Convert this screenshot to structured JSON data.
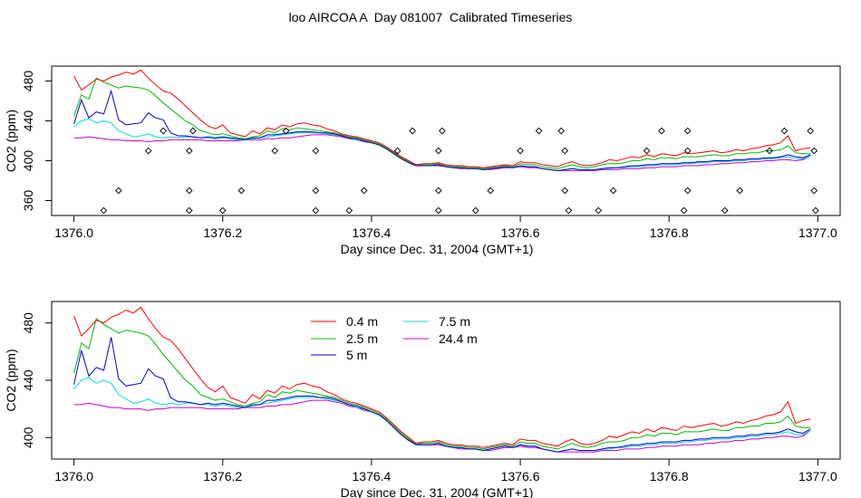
{
  "title": "loo AIRCOA A  Day 081007  Calibrated Timeseries",
  "chart_data": [
    {
      "type": "line",
      "title": "",
      "xlabel": "Day since Dec. 31, 2004 (GMT+1)",
      "ylabel": "CO2 (ppm)",
      "xlim": [
        1375.97,
        1377.03
      ],
      "ylim": [
        345,
        495
      ],
      "xticks": [
        1376.0,
        1376.2,
        1376.4,
        1376.6,
        1376.8,
        1377.0
      ],
      "xtick_labels": [
        "1376.0",
        "1376.2",
        "1376.4",
        "1376.6",
        "1376.8",
        "1377.0"
      ],
      "yticks": [
        360,
        400,
        440,
        480
      ],
      "ytick_labels": [
        "360",
        "400",
        "440",
        "480"
      ],
      "grid": false,
      "legend": "none",
      "x": [
        1376.0,
        1376.01,
        1376.02,
        1376.03,
        1376.04,
        1376.05,
        1376.06,
        1376.07,
        1376.08,
        1376.09,
        1376.1,
        1376.11,
        1376.12,
        1376.13,
        1376.14,
        1376.15,
        1376.16,
        1376.17,
        1376.18,
        1376.19,
        1376.2,
        1376.21,
        1376.22,
        1376.23,
        1376.24,
        1376.25,
        1376.26,
        1376.27,
        1376.28,
        1376.29,
        1376.3,
        1376.31,
        1376.32,
        1376.33,
        1376.34,
        1376.35,
        1376.36,
        1376.37,
        1376.38,
        1376.39,
        1376.4,
        1376.41,
        1376.42,
        1376.43,
        1376.44,
        1376.45,
        1376.46,
        1376.47,
        1376.48,
        1376.49,
        1376.5,
        1376.51,
        1376.52,
        1376.53,
        1376.54,
        1376.55,
        1376.56,
        1376.57,
        1376.58,
        1376.59,
        1376.6,
        1376.61,
        1376.62,
        1376.63,
        1376.64,
        1376.65,
        1376.66,
        1376.67,
        1376.68,
        1376.69,
        1376.7,
        1376.71,
        1376.72,
        1376.73,
        1376.74,
        1376.75,
        1376.76,
        1376.77,
        1376.78,
        1376.79,
        1376.8,
        1376.81,
        1376.82,
        1376.83,
        1376.84,
        1376.85,
        1376.86,
        1376.87,
        1376.88,
        1376.89,
        1376.9,
        1376.91,
        1376.92,
        1376.93,
        1376.94,
        1376.95,
        1376.96,
        1376.97,
        1376.98,
        1376.99
      ],
      "series": [
        {
          "name": "0.4 m",
          "color": "#ff0000",
          "values": [
            485,
            471,
            476,
            482,
            480,
            484,
            486,
            489,
            487,
            491,
            483,
            476,
            470,
            468,
            462,
            455,
            448,
            441,
            435,
            432,
            436,
            428,
            426,
            424,
            430,
            427,
            433,
            431,
            436,
            434,
            437,
            438,
            436,
            435,
            432,
            430,
            427,
            425,
            424,
            422,
            420,
            418,
            414,
            409,
            404,
            400,
            396,
            397,
            397,
            398,
            396,
            395,
            395,
            394,
            394,
            393,
            394,
            395,
            396,
            395,
            399,
            398,
            398,
            396,
            395,
            394,
            397,
            399,
            396,
            395,
            396,
            398,
            401,
            400,
            402,
            404,
            403,
            406,
            404,
            407,
            406,
            405,
            408,
            407,
            408,
            409,
            410,
            408,
            409,
            411,
            410,
            412,
            413,
            415,
            416,
            418,
            425,
            410,
            412,
            413
          ]
        },
        {
          "name": "2.5 m",
          "color": "#00bb00",
          "values": [
            445,
            466,
            462,
            483,
            479,
            476,
            473,
            475,
            474,
            473,
            471,
            465,
            458,
            452,
            446,
            440,
            436,
            430,
            428,
            426,
            427,
            425,
            423,
            422,
            424,
            425,
            430,
            428,
            432,
            431,
            433,
            432,
            431,
            430,
            429,
            428,
            426,
            424,
            423,
            421,
            419,
            417,
            413,
            408,
            403,
            399,
            396,
            396,
            396,
            397,
            395,
            394,
            394,
            393,
            393,
            392,
            393,
            394,
            395,
            394,
            397,
            396,
            396,
            394,
            393,
            392,
            394,
            396,
            394,
            393,
            394,
            396,
            397,
            397,
            398,
            400,
            400,
            402,
            401,
            403,
            403,
            402,
            404,
            404,
            404,
            405,
            406,
            405,
            405,
            407,
            407,
            408,
            408,
            410,
            410,
            411,
            415,
            408,
            407,
            407
          ]
        },
        {
          "name": "5 m",
          "color": "#0000cc",
          "values": [
            437,
            461,
            443,
            449,
            447,
            470,
            441,
            436,
            437,
            438,
            448,
            443,
            441,
            428,
            425,
            425,
            424,
            423,
            424,
            423,
            424,
            423,
            422,
            421,
            423,
            423,
            426,
            426,
            427,
            428,
            429,
            429,
            429,
            428,
            428,
            427,
            425,
            423,
            422,
            420,
            418,
            416,
            412,
            407,
            402,
            398,
            395,
            395,
            395,
            396,
            394,
            393,
            393,
            392,
            392,
            391,
            392,
            393,
            394,
            393,
            395,
            394,
            394,
            392,
            391,
            390,
            391,
            392,
            391,
            391,
            391,
            392,
            393,
            393,
            394,
            395,
            395,
            396,
            396,
            397,
            397,
            397,
            398,
            398,
            399,
            399,
            400,
            400,
            400,
            401,
            401,
            402,
            402,
            403,
            403,
            404,
            406,
            404,
            403,
            406
          ]
        },
        {
          "name": "7.5 m",
          "color": "#00dddd",
          "values": [
            434,
            440,
            442,
            438,
            440,
            438,
            430,
            427,
            424,
            425,
            427,
            424,
            423,
            424,
            423,
            424,
            424,
            423,
            423,
            422,
            423,
            422,
            421,
            421,
            422,
            423,
            424,
            425,
            426,
            427,
            428,
            428,
            428,
            428,
            427,
            426,
            425,
            423,
            421,
            420,
            418,
            416,
            412,
            407,
            402,
            398,
            395,
            395,
            395,
            396,
            394,
            393,
            393,
            392,
            392,
            391,
            392,
            393,
            394,
            393,
            395,
            394,
            394,
            392,
            391,
            390,
            391,
            392,
            391,
            391,
            391,
            392,
            392,
            393,
            393,
            394,
            394,
            395,
            395,
            396,
            396,
            396,
            397,
            397,
            398,
            398,
            399,
            399,
            399,
            400,
            400,
            401,
            401,
            402,
            402,
            403,
            404,
            402,
            402,
            405
          ]
        },
        {
          "name": "24.4 m",
          "color": "#cc00cc",
          "values": [
            423,
            423,
            424,
            423,
            422,
            421,
            421,
            420,
            420,
            420,
            419,
            420,
            420,
            421,
            421,
            421,
            421,
            421,
            420,
            420,
            420,
            420,
            420,
            421,
            421,
            421,
            422,
            422,
            423,
            423,
            424,
            425,
            426,
            426,
            426,
            425,
            424,
            422,
            421,
            419,
            418,
            416,
            412,
            407,
            402,
            398,
            396,
            395,
            395,
            395,
            394,
            393,
            392,
            392,
            392,
            391,
            391,
            392,
            393,
            393,
            394,
            393,
            393,
            392,
            391,
            390,
            390,
            390,
            390,
            390,
            390,
            391,
            391,
            391,
            392,
            392,
            392,
            393,
            393,
            394,
            394,
            394,
            395,
            395,
            395,
            396,
            396,
            397,
            397,
            398,
            398,
            399,
            399,
            400,
            400,
            401,
            401,
            400,
            401,
            405
          ]
        }
      ],
      "markers": {
        "shape": "open-diamond",
        "points": [
          [
            1376.04,
            350
          ],
          [
            1376.06,
            370
          ],
          [
            1376.1,
            410
          ],
          [
            1376.12,
            430
          ],
          [
            1376.155,
            350
          ],
          [
            1376.155,
            370
          ],
          [
            1376.155,
            410
          ],
          [
            1376.16,
            430
          ],
          [
            1376.2,
            350
          ],
          [
            1376.225,
            370
          ],
          [
            1376.27,
            410
          ],
          [
            1376.285,
            430
          ],
          [
            1376.325,
            350
          ],
          [
            1376.325,
            370
          ],
          [
            1376.325,
            410
          ],
          [
            1376.37,
            350
          ],
          [
            1376.39,
            370
          ],
          [
            1376.435,
            410
          ],
          [
            1376.455,
            430
          ],
          [
            1376.49,
            350
          ],
          [
            1376.49,
            370
          ],
          [
            1376.49,
            410
          ],
          [
            1376.495,
            430
          ],
          [
            1376.54,
            350
          ],
          [
            1376.56,
            370
          ],
          [
            1376.6,
            410
          ],
          [
            1376.625,
            430
          ],
          [
            1376.655,
            430
          ],
          [
            1376.66,
            410
          ],
          [
            1376.66,
            370
          ],
          [
            1376.665,
            350
          ],
          [
            1376.705,
            350
          ],
          [
            1376.725,
            370
          ],
          [
            1376.77,
            410
          ],
          [
            1376.79,
            430
          ],
          [
            1376.82,
            350
          ],
          [
            1376.825,
            370
          ],
          [
            1376.825,
            410
          ],
          [
            1376.825,
            430
          ],
          [
            1376.875,
            350
          ],
          [
            1376.895,
            370
          ],
          [
            1376.935,
            410
          ],
          [
            1376.955,
            430
          ],
          [
            1376.99,
            430
          ],
          [
            1376.995,
            410
          ],
          [
            1376.995,
            370
          ],
          [
            1376.997,
            350
          ]
        ]
      }
    },
    {
      "type": "line",
      "title": "",
      "xlabel": "Day since Dec. 31, 2004 (GMT+1)",
      "ylabel": "CO2 (ppm)",
      "xlim": [
        1375.97,
        1377.03
      ],
      "ylim": [
        385,
        495
      ],
      "xticks": [
        1376.0,
        1376.2,
        1376.4,
        1376.6,
        1376.8,
        1377.0
      ],
      "xtick_labels": [
        "1376.0",
        "1376.2",
        "1376.4",
        "1376.6",
        "1376.8",
        "1377.0"
      ],
      "yticks": [
        400,
        440,
        480
      ],
      "ytick_labels": [
        "400",
        "440",
        "480"
      ],
      "grid": false,
      "legend": "top-left",
      "legend_entries": [
        {
          "label": "0.4 m",
          "color": "#ff0000"
        },
        {
          "label": "2.5 m",
          "color": "#00bb00"
        },
        {
          "label": "5 m",
          "color": "#0000cc"
        },
        {
          "label": "7.5 m",
          "color": "#00dddd"
        },
        {
          "label": "24.4 m",
          "color": "#cc00cc"
        }
      ],
      "same_series_as_panel": 1
    }
  ]
}
